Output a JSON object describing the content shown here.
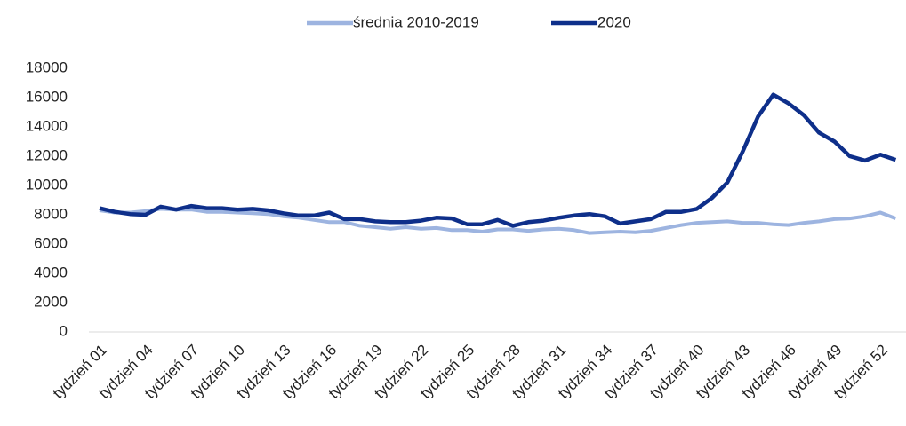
{
  "chart_data": {
    "type": "line",
    "categories": [
      "tydzień 01",
      null,
      null,
      "tydzień 04",
      null,
      null,
      "tydzień 07",
      null,
      null,
      "tydzień 10",
      null,
      null,
      "tydzień 13",
      null,
      null,
      "tydzień 16",
      null,
      null,
      "tydzień 19",
      null,
      null,
      "tydzień 22",
      null,
      null,
      "tydzień 25",
      null,
      null,
      "tydzień 28",
      null,
      null,
      "tydzień 31",
      null,
      null,
      "tydzień 34",
      null,
      null,
      "tydzień 37",
      null,
      null,
      "tydzień 40",
      null,
      null,
      "tydzień 43",
      null,
      null,
      "tydzień 46",
      null,
      null,
      "tydzień 49",
      null,
      null,
      "tydzień 52",
      null
    ],
    "series": [
      {
        "name": "średnia 2010-2019",
        "color": "#9db4e0",
        "values": [
          8300,
          8150,
          8150,
          8250,
          8400,
          8350,
          8350,
          8200,
          8200,
          8150,
          8100,
          8050,
          7900,
          7800,
          7650,
          7500,
          7500,
          7250,
          7150,
          7050,
          7150,
          7050,
          7100,
          6950,
          6950,
          6850,
          7000,
          7000,
          6900,
          7000,
          7050,
          6950,
          6750,
          6800,
          6850,
          6800,
          6900,
          7100,
          7300,
          7450,
          7500,
          7550,
          7450,
          7450,
          7350,
          7300,
          7450,
          7550,
          7700,
          7750,
          7900,
          8150,
          7750
        ]
      },
      {
        "name": "2020",
        "color": "#0e2f8a",
        "values": [
          8450,
          8200,
          8050,
          8000,
          8550,
          8350,
          8600,
          8450,
          8450,
          8350,
          8400,
          8300,
          8100,
          7950,
          7950,
          8150,
          7700,
          7700,
          7550,
          7500,
          7500,
          7600,
          7800,
          7750,
          7350,
          7350,
          7650,
          7250,
          7500,
          7600,
          7800,
          7950,
          8050,
          7900,
          7400,
          7550,
          7700,
          8200,
          8200,
          8400,
          9150,
          10200,
          12300,
          14700,
          16200,
          15600,
          14800,
          13600,
          13000,
          12000,
          11700,
          12100,
          11750
        ]
      }
    ],
    "ylim": [
      0,
      18000
    ],
    "yticks": [
      0,
      2000,
      4000,
      6000,
      8000,
      10000,
      12000,
      14000,
      16000,
      18000
    ],
    "legend": "top"
  }
}
